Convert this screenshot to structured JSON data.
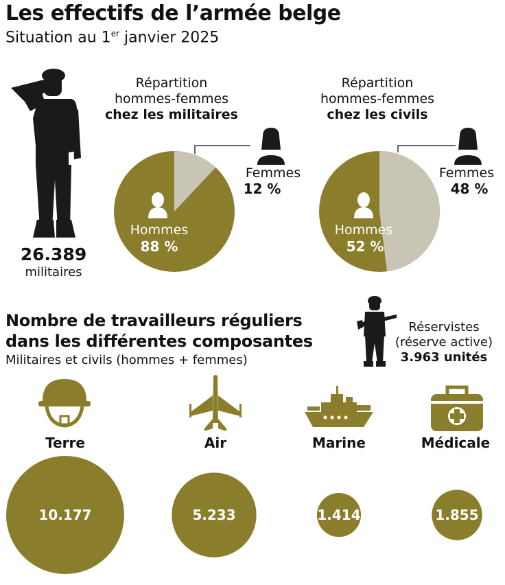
{
  "header": {
    "title": "Les effectifs de l’armée belge",
    "subtitle_pre": "Situation au 1",
    "subtitle_sup": "er",
    "subtitle_post": " janvier 2025"
  },
  "total": {
    "value": "26.389",
    "label": "militaires"
  },
  "pie_militaires": {
    "heading_line1": "Répartition",
    "heading_line2": "hommes-femmes",
    "heading_line3": "chez les militaires",
    "femmes_label": "Femmes",
    "femmes_value": "12 %",
    "hommes_label": "Hommes",
    "hommes_value": "88 %"
  },
  "pie_civils": {
    "heading_line1": "Répartition",
    "heading_line2": "hommes-femmes",
    "heading_line3": "chez les civils",
    "femmes_label": "Femmes",
    "femmes_value": "48 %",
    "hommes_label": "Hommes",
    "hommes_value": "52 %"
  },
  "section": {
    "title_line1": "Nombre de travailleurs réguliers",
    "title_line2": "dans les différentes composantes",
    "subtitle": "Militaires et civils (hommes + femmes)"
  },
  "reservistes": {
    "line1": "Réservistes",
    "line2": "(réserve active)",
    "line3": "3.963 unités"
  },
  "colors": {
    "olive": "#8a7d2b",
    "beige": "#c9c5b4",
    "dark": "#1a1a1a",
    "icon_olive": "#8a7d2b"
  },
  "chart_data": [
    {
      "type": "pie",
      "title": "Répartition hommes-femmes chez les militaires",
      "slices": [
        {
          "name": "Femmes",
          "value": 12
        },
        {
          "name": "Hommes",
          "value": 88
        }
      ]
    },
    {
      "type": "pie",
      "title": "Répartition hommes-femmes chez les civils",
      "slices": [
        {
          "name": "Femmes",
          "value": 48
        },
        {
          "name": "Hommes",
          "value": 52
        }
      ]
    },
    {
      "type": "bubble",
      "title": "Nombre de travailleurs réguliers dans les différentes composantes",
      "categories": [
        "Terre",
        "Air",
        "Marine",
        "Médicale"
      ],
      "values": [
        10177,
        5233,
        1414,
        1855
      ],
      "value_labels": [
        "10.177",
        "5.233",
        "1.414",
        "1.855"
      ]
    }
  ]
}
